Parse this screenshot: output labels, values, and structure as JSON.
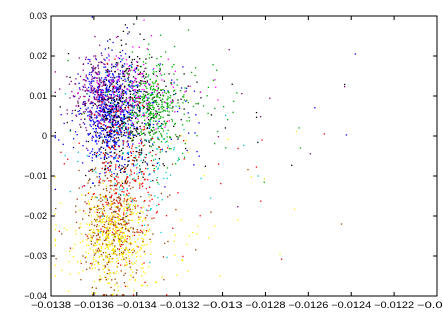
{
  "chart_data": {
    "type": "scatter",
    "title": "",
    "xlabel": "",
    "ylabel": "",
    "xlim": [
      -0.0138,
      -0.012
    ],
    "ylim": [
      -0.04,
      0.03
    ],
    "grid": false,
    "legend": "none",
    "x_ticks": [
      -0.0138,
      -0.0136,
      -0.0134,
      -0.0132,
      -0.013,
      -0.0128,
      -0.0126,
      -0.0124,
      -0.0122,
      -0.012
    ],
    "x_tick_labels": [
      "−0.0138",
      "−0.0136",
      "−0.0134",
      "−0.0132",
      "−0.013",
      "−0.0128",
      "−0.0126",
      "−0.0124",
      "−0.0122",
      "−0.012"
    ],
    "y_ticks": [
      -0.04,
      -0.03,
      -0.02,
      -0.01,
      0,
      0.01,
      0.02,
      0.03
    ],
    "y_tick_labels": [
      "−0.04",
      "−0.03",
      "−0.02",
      "−0.01",
      "0",
      "0.01",
      "0.02",
      "0.03"
    ],
    "series": [
      {
        "color": "#0000ff",
        "cx": -0.01355,
        "cy": 0.006,
        "sx": 8e-05,
        "sy": 0.007,
        "n": 750
      },
      {
        "color": "#000000",
        "cx": -0.0135,
        "cy": 0.005,
        "sx": 0.0001,
        "sy": 0.008,
        "n": 500
      },
      {
        "color": "#00aa00",
        "cx": -0.01335,
        "cy": 0.007,
        "sx": 8e-05,
        "sy": 0.006,
        "n": 380
      },
      {
        "color": "#8a0080",
        "cx": -0.0136,
        "cy": 0.01,
        "sx": 7e-05,
        "sy": 0.005,
        "n": 300
      },
      {
        "color": "#ff00ff",
        "cx": -0.01345,
        "cy": 0.012,
        "sx": 0.0001,
        "sy": 0.005,
        "n": 130
      },
      {
        "color": "#00cccc",
        "cx": -0.01345,
        "cy": -0.005,
        "sx": 0.00012,
        "sy": 0.01,
        "n": 160
      },
      {
        "color": "#ff0000",
        "cx": -0.0135,
        "cy": -0.01,
        "sx": 0.0001,
        "sy": 0.011,
        "n": 280
      },
      {
        "color": "#a04000",
        "cx": -0.01355,
        "cy": -0.022,
        "sx": 8e-05,
        "sy": 0.008,
        "n": 380
      },
      {
        "color": "#ffee00",
        "cx": -0.01355,
        "cy": -0.026,
        "sx": 0.0001,
        "sy": 0.006,
        "n": 480
      }
    ]
  }
}
